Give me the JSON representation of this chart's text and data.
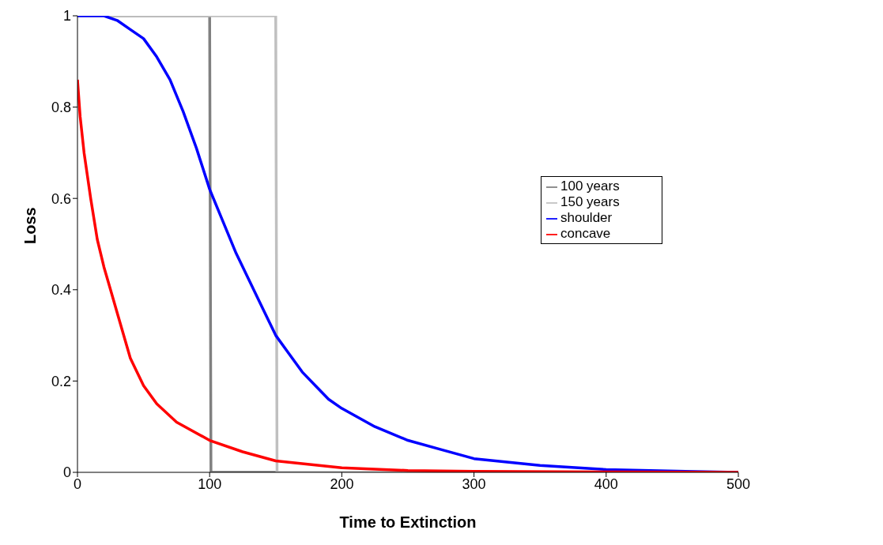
{
  "chart_data": {
    "type": "line",
    "xlabel": "Time to Extinction",
    "ylabel": "Loss",
    "xlim": [
      0,
      500
    ],
    "xticks": [
      0,
      100,
      200,
      300,
      400,
      500
    ],
    "ylim": [
      0,
      1
    ],
    "yticks": [
      0,
      0.2,
      0.4,
      0.6,
      0.8,
      1
    ],
    "grid": false,
    "legend": "right",
    "marker": "none",
    "line_style": "solid",
    "series": [
      {
        "name": "100 years",
        "color": "#808080",
        "x": [
          0,
          100,
          101,
          150
        ],
        "values": [
          1,
          1,
          0,
          0
        ]
      },
      {
        "name": "150 years",
        "color": "#c0c0c0",
        "x": [
          0,
          150,
          151,
          500
        ],
        "values": [
          1,
          1,
          0,
          0
        ]
      },
      {
        "name": "shoulder",
        "color": "#0000ff",
        "x": [
          0,
          20,
          30,
          40,
          50,
          60,
          70,
          80,
          90,
          100,
          110,
          120,
          130,
          140,
          150,
          160,
          170,
          180,
          190,
          200,
          225,
          250,
          275,
          300,
          350,
          400,
          460,
          500
        ],
        "values": [
          1,
          1,
          0.99,
          0.97,
          0.95,
          0.91,
          0.86,
          0.79,
          0.71,
          0.62,
          0.55,
          0.48,
          0.42,
          0.36,
          0.3,
          0.26,
          0.22,
          0.19,
          0.16,
          0.14,
          0.1,
          0.07,
          0.05,
          0.03,
          0.015,
          0.006,
          0.002,
          0
        ]
      },
      {
        "name": "concave",
        "color": "#ff0000",
        "x": [
          0,
          2,
          5,
          10,
          15,
          20,
          25,
          30,
          40,
          50,
          60,
          75,
          100,
          125,
          150,
          200,
          250,
          300,
          400,
          500
        ],
        "values": [
          0.86,
          0.78,
          0.7,
          0.6,
          0.51,
          0.45,
          0.4,
          0.35,
          0.25,
          0.19,
          0.15,
          0.11,
          0.07,
          0.045,
          0.025,
          0.01,
          0.004,
          0.002,
          0.001,
          0
        ]
      }
    ]
  }
}
